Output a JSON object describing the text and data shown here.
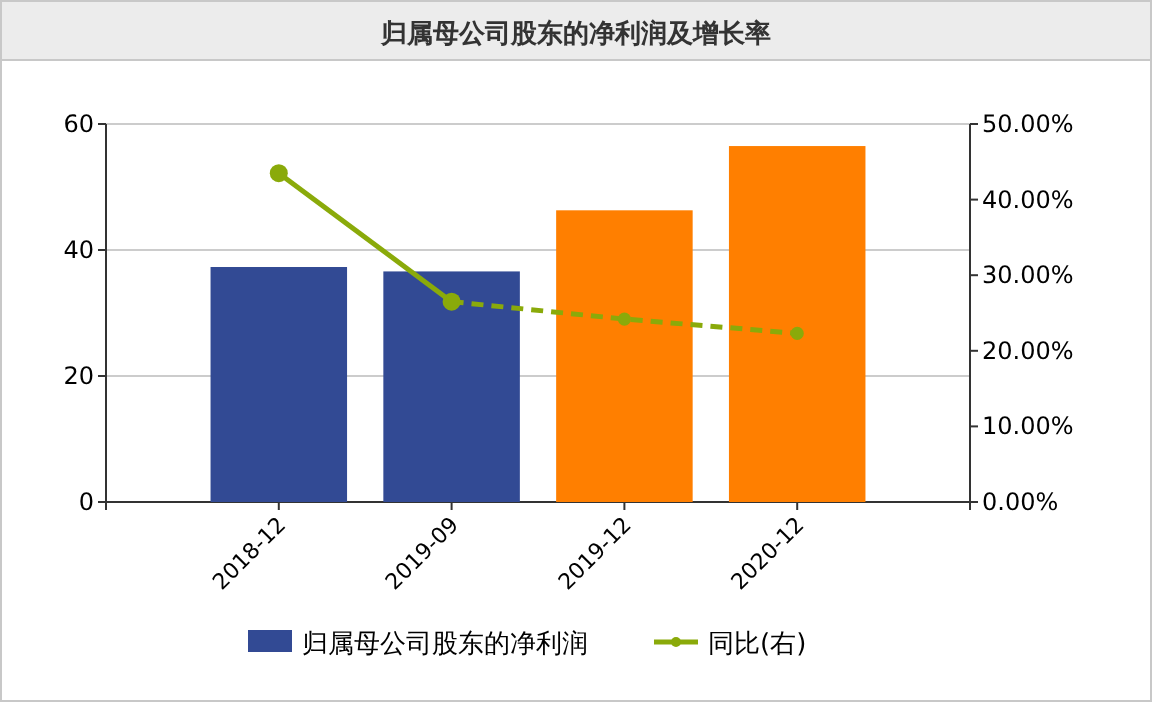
{
  "chart_data": {
    "type": "bar",
    "title": "归属母公司股东的净利润及增长率",
    "categories": [
      "2018-12",
      "2019-09",
      "2019-12",
      "2020-12"
    ],
    "series": [
      {
        "name": "归属母公司股东的净利润",
        "colors": [
          "#324a94",
          "#324a94",
          "#ff7f00",
          "#ff7f00"
        ],
        "values": [
          37.3,
          36.6,
          46.3,
          56.5
        ]
      },
      {
        "name": "同比(右)",
        "type": "line",
        "axis": "y2",
        "color": "#8aaa0a",
        "line_style": "solid",
        "values": [
          43.5,
          26.5,
          null,
          null
        ]
      },
      {
        "type": "line",
        "axis": "y2",
        "color": "#8aaa0a",
        "line_style": "dashed",
        "values": [
          null,
          26.5,
          24.2,
          22.3
        ]
      }
    ],
    "ylim": [
      0,
      60
    ],
    "yticks": [
      0,
      20,
      40,
      60
    ],
    "y2lim": [
      0,
      50
    ],
    "y2ticks": [
      {
        "value": 0,
        "label": "0.00%"
      },
      {
        "value": 10,
        "label": "10.00%"
      },
      {
        "value": 20,
        "label": "20.00%"
      },
      {
        "value": 30,
        "label": "30.00%"
      },
      {
        "value": 40,
        "label": "40.00%"
      },
      {
        "value": 50,
        "label": "50.00%"
      }
    ],
    "grid": "y",
    "legend": "bottom",
    "marker": "circle"
  }
}
